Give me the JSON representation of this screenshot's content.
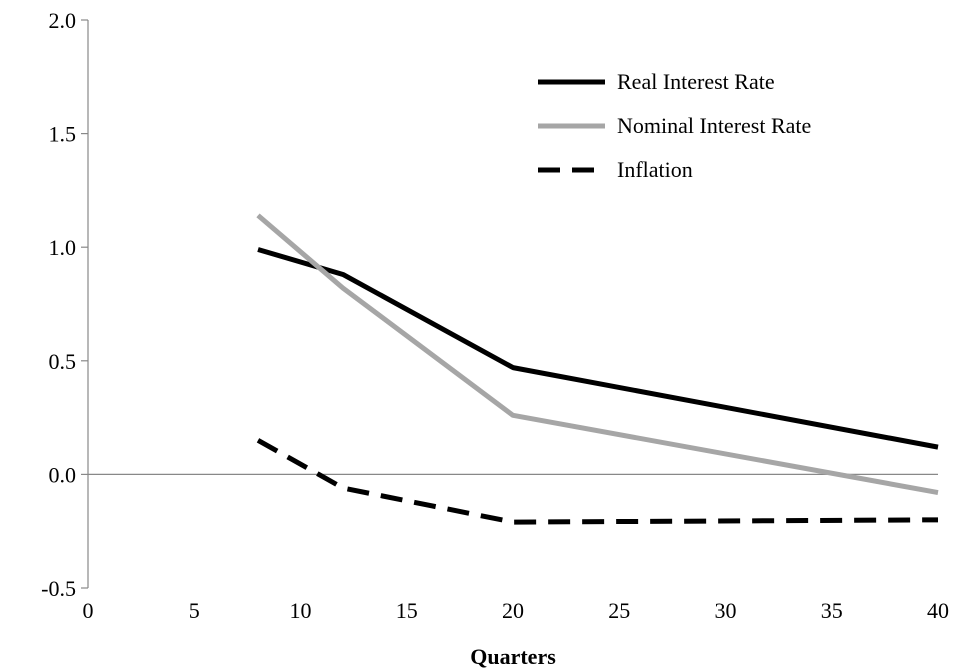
{
  "chart_data": {
    "type": "line",
    "title": "",
    "xlabel": "Quarters",
    "ylabel": "",
    "xlim": [
      0,
      40
    ],
    "ylim": [
      -0.5,
      2.0
    ],
    "x_ticks": [
      0,
      5,
      10,
      15,
      20,
      25,
      30,
      35,
      40
    ],
    "y_ticks": [
      -0.5,
      0.0,
      0.5,
      1.0,
      1.5,
      2.0
    ],
    "x_tick_labels": [
      "0",
      "5",
      "10",
      "15",
      "20",
      "25",
      "30",
      "35",
      "40"
    ],
    "y_tick_labels": [
      "-0.5",
      "0.0",
      "0.5",
      "1.0",
      "1.5",
      "2.0"
    ],
    "grid": false,
    "zero_line": true,
    "legend_position": "top-right",
    "series": [
      {
        "name": "Real Interest Rate",
        "color": "#000000",
        "dashed": false,
        "x": [
          8,
          12,
          20,
          40
        ],
        "y": [
          0.99,
          0.88,
          0.47,
          0.12
        ]
      },
      {
        "name": "Nominal Interest Rate",
        "color": "#a6a6a6",
        "dashed": false,
        "x": [
          8,
          12,
          20,
          40
        ],
        "y": [
          1.14,
          0.82,
          0.26,
          -0.08
        ]
      },
      {
        "name": "Inflation",
        "color": "#000000",
        "dashed": true,
        "x": [
          8,
          12,
          20,
          40
        ],
        "y": [
          0.15,
          -0.06,
          -0.21,
          -0.2
        ]
      }
    ]
  }
}
